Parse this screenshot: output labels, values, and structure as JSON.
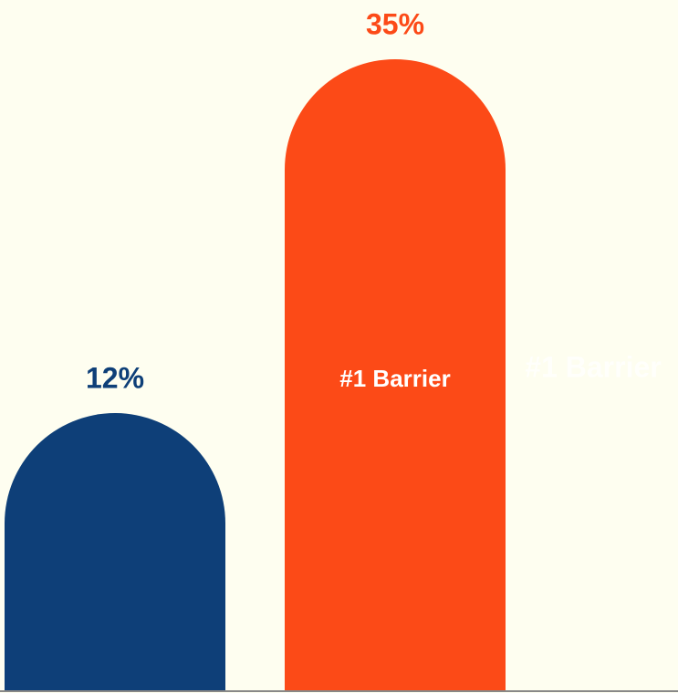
{
  "chart_data": {
    "type": "bar",
    "categories": [
      null,
      null
    ],
    "values": [
      12,
      35
    ],
    "value_labels": [
      "12%",
      "35%"
    ],
    "colors": [
      "#0e3f78",
      "#fc4a17"
    ],
    "annotation": "#1 Barrier"
  }
}
